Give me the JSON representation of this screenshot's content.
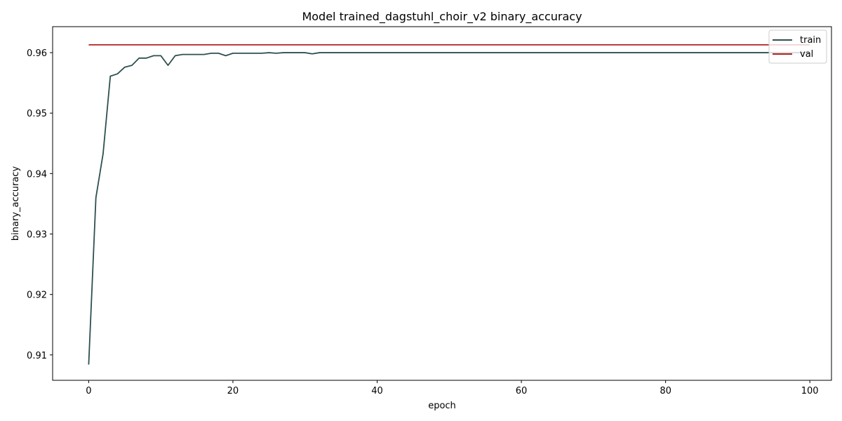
{
  "chart_data": {
    "type": "line",
    "title": "Model trained_dagstuhl_choir_v2 binary_accuracy",
    "xlabel": "epoch",
    "ylabel": "binary_accuracy",
    "xlim": [
      -5,
      103
    ],
    "ylim": [
      0.9058,
      0.9643
    ],
    "xticks": [
      0,
      20,
      40,
      60,
      80,
      100
    ],
    "yticks": [
      0.91,
      0.92,
      0.93,
      0.94,
      0.95,
      0.96
    ],
    "ytick_labels": [
      "0.91",
      "0.92",
      "0.93",
      "0.94",
      "0.95",
      "0.96"
    ],
    "grid": false,
    "legend_position": "upper right",
    "series": [
      {
        "name": "train",
        "color": "#2f4f4f",
        "x_end": 100,
        "x_start": 0,
        "values": [
          0.9084,
          0.936,
          0.9433,
          0.9561,
          0.9565,
          0.9576,
          0.9579,
          0.9591,
          0.9591,
          0.9595,
          0.9595,
          0.9579,
          0.9595,
          0.9597,
          0.9597,
          0.9597,
          0.9597,
          0.9599,
          0.9599,
          0.9595,
          0.9599,
          0.9599,
          0.9599,
          0.9599,
          0.9599,
          0.96,
          0.9599,
          0.96,
          0.96,
          0.96,
          0.96,
          0.9598,
          0.96,
          0.96,
          0.96,
          0.96,
          0.96,
          0.96,
          0.96,
          0.96,
          0.96,
          0.96,
          0.96,
          0.96,
          0.96,
          0.96,
          0.96,
          0.96,
          0.96,
          0.96,
          0.96,
          0.96,
          0.96,
          0.96,
          0.96,
          0.96,
          0.96,
          0.96,
          0.96,
          0.96,
          0.96,
          0.96,
          0.96,
          0.96,
          0.96,
          0.96,
          0.96,
          0.96,
          0.96,
          0.96,
          0.96,
          0.96,
          0.96,
          0.96,
          0.96,
          0.96,
          0.96,
          0.96,
          0.96,
          0.96,
          0.96,
          0.96,
          0.96,
          0.96,
          0.96,
          0.96,
          0.96,
          0.96,
          0.96,
          0.96,
          0.96,
          0.96,
          0.96,
          0.96,
          0.96,
          0.96,
          0.96,
          0.96,
          0.96,
          0.96,
          0.96
        ]
      },
      {
        "name": "val",
        "color": "#b22222",
        "x_end": 100,
        "x_start": 0,
        "values": [
          0.9613,
          0.9613,
          0.9613,
          0.9613,
          0.9613,
          0.9613,
          0.9613,
          0.9613,
          0.9613,
          0.9613,
          0.9613,
          0.9613,
          0.9613,
          0.9613,
          0.9613,
          0.9613,
          0.9613,
          0.9613,
          0.9613,
          0.9613,
          0.9613,
          0.9613,
          0.9613,
          0.9613,
          0.9613,
          0.9613,
          0.9613,
          0.9613,
          0.9613,
          0.9613,
          0.9613,
          0.9613,
          0.9613,
          0.9613,
          0.9613,
          0.9613,
          0.9613,
          0.9613,
          0.9613,
          0.9613,
          0.9613,
          0.9613,
          0.9613,
          0.9613,
          0.9613,
          0.9613,
          0.9613,
          0.9613,
          0.9613,
          0.9613,
          0.9613,
          0.9613,
          0.9613,
          0.9613,
          0.9613,
          0.9613,
          0.9613,
          0.9613,
          0.9613,
          0.9613,
          0.9613,
          0.9613,
          0.9613,
          0.9613,
          0.9613,
          0.9613,
          0.9613,
          0.9613,
          0.9613,
          0.9613,
          0.9613,
          0.9613,
          0.9613,
          0.9613,
          0.9613,
          0.9613,
          0.9613,
          0.9613,
          0.9613,
          0.9613,
          0.9613,
          0.9613,
          0.9613,
          0.9613,
          0.9613,
          0.9613,
          0.9613,
          0.9613,
          0.9613,
          0.9613,
          0.9613,
          0.9613,
          0.9613,
          0.9613,
          0.9613,
          0.9613,
          0.9613,
          0.9613,
          0.9613,
          0.9613,
          0.9613
        ]
      }
    ]
  }
}
